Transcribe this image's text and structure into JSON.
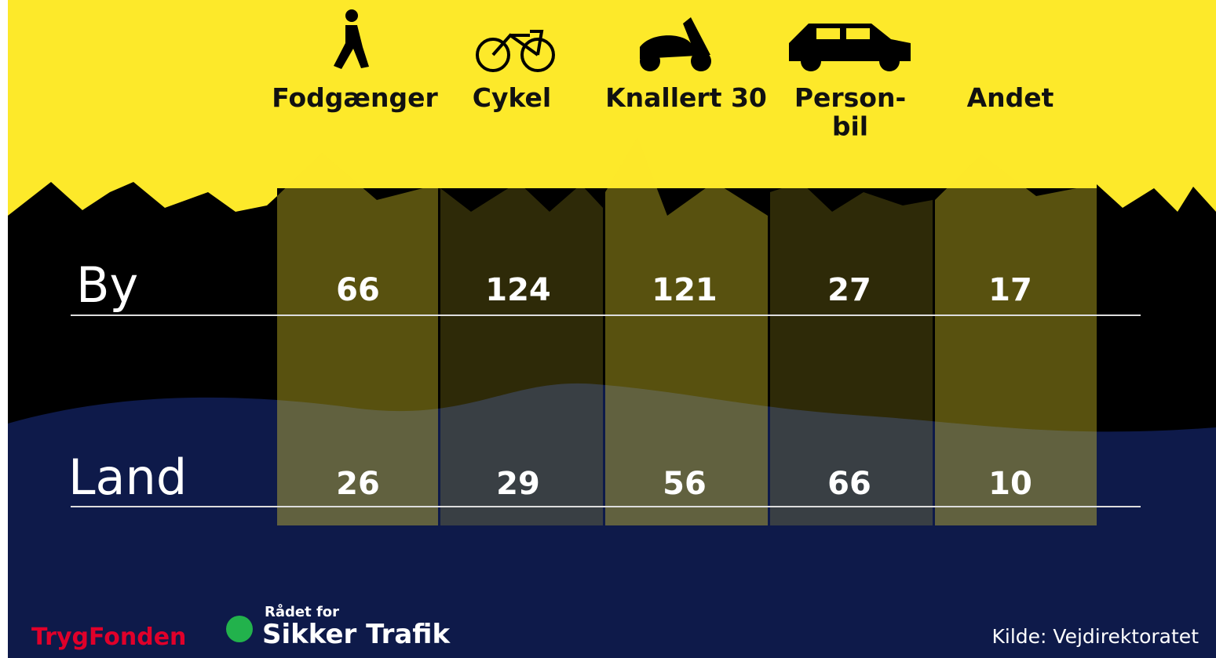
{
  "table": {
    "columns": [
      "Fodgænger",
      "Cykel",
      "Knallert 30",
      "Person-\nbil",
      "Andet"
    ],
    "rows": [
      {
        "label": "By",
        "values": [
          66,
          124,
          121,
          27,
          17
        ]
      },
      {
        "label": "Land",
        "values": [
          26,
          29,
          56,
          66,
          10
        ]
      }
    ]
  },
  "footer": {
    "logo1": "TrygFonden",
    "logo2_small": "Rådet for",
    "logo2": "Sikker Trafik",
    "source": "Kilde: Vejdirektoratet"
  }
}
